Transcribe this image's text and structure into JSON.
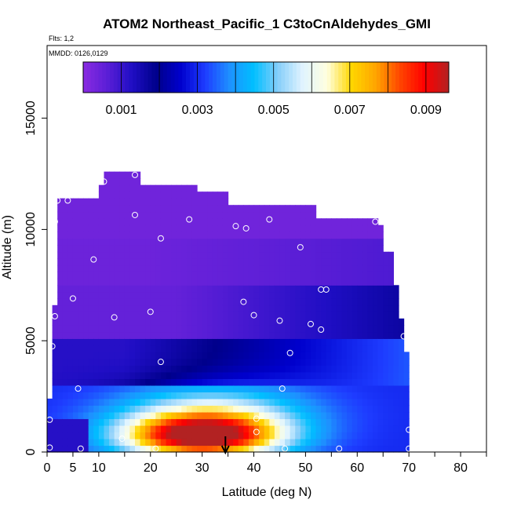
{
  "chart_data": {
    "type": "heatmap",
    "title": "ATOM2 Northeast_Pacific_1 C3toCnAldehydes_GMI",
    "flights_note": "Flts: 1,2",
    "mmdd_note": "MMDD: 0126,0129",
    "xlabel": "Latitude (deg N)",
    "ylabel": "Altitude (m)",
    "xlim": [
      0,
      85
    ],
    "ylim": [
      0,
      17500
    ],
    "x_ticks": [
      0,
      5,
      10,
      20,
      30,
      40,
      50,
      60,
      70,
      80
    ],
    "x_tick_labels": [
      "0",
      "5",
      "10",
      "20",
      "30",
      "40",
      "50",
      "60",
      "70",
      "80"
    ],
    "y_ticks": [
      0,
      5000,
      10000,
      15000
    ],
    "y_tick_labels": [
      "0",
      "5000",
      "10000",
      "15000"
    ],
    "colorbar": {
      "min": 0.0,
      "max": 0.0096,
      "tick_values": [
        0.001,
        0.003,
        0.005,
        0.007,
        0.009
      ],
      "tick_labels": [
        "0.001",
        "0.003",
        "0.005",
        "0.007",
        "0.009"
      ],
      "colors": [
        "#8a2be2",
        "#5a1ed6",
        "#1f0ec4",
        "#00008b",
        "#0000cd",
        "#1e3cff",
        "#1e90ff",
        "#00bfff",
        "#87cefa",
        "#e0f4ff",
        "#ffffe0",
        "#ffd700",
        "#ffa500",
        "#ff4500",
        "#ff0000",
        "#b22222"
      ]
    },
    "arrow_latitude": 34.5,
    "data_points": [
      {
        "lat": 17,
        "alt": 12450
      },
      {
        "lat": 11,
        "alt": 12150
      },
      {
        "lat": 2,
        "alt": 11300
      },
      {
        "lat": 4,
        "alt": 11300
      },
      {
        "lat": 1.5,
        "alt": 10350
      },
      {
        "lat": 17,
        "alt": 10650
      },
      {
        "lat": 27.5,
        "alt": 10450
      },
      {
        "lat": 22,
        "alt": 9600
      },
      {
        "lat": 36.5,
        "alt": 10150
      },
      {
        "lat": 38.5,
        "alt": 10050
      },
      {
        "lat": 43,
        "alt": 10450
      },
      {
        "lat": 63.5,
        "alt": 10350
      },
      {
        "lat": 9,
        "alt": 8650
      },
      {
        "lat": 49,
        "alt": 9200
      },
      {
        "lat": 5,
        "alt": 6900
      },
      {
        "lat": 38,
        "alt": 6750
      },
      {
        "lat": 53,
        "alt": 7300
      },
      {
        "lat": 54,
        "alt": 7300
      },
      {
        "lat": 1.5,
        "alt": 6100
      },
      {
        "lat": 13,
        "alt": 6050
      },
      {
        "lat": 20,
        "alt": 6300
      },
      {
        "lat": 40,
        "alt": 6150
      },
      {
        "lat": 45,
        "alt": 5900
      },
      {
        "lat": 51,
        "alt": 5750
      },
      {
        "lat": 53,
        "alt": 5500
      },
      {
        "lat": 69,
        "alt": 5200
      },
      {
        "lat": 1,
        "alt": 4750
      },
      {
        "lat": 22,
        "alt": 4050
      },
      {
        "lat": 47,
        "alt": 4450
      },
      {
        "lat": 6,
        "alt": 2850
      },
      {
        "lat": 45.5,
        "alt": 2850
      },
      {
        "lat": 0.5,
        "alt": 1450
      },
      {
        "lat": 40.5,
        "alt": 1500
      },
      {
        "lat": 40.5,
        "alt": 900
      },
      {
        "lat": 70,
        "alt": 1000
      },
      {
        "lat": 14.5,
        "alt": 600
      },
      {
        "lat": 0.5,
        "alt": 200
      },
      {
        "lat": 6.5,
        "alt": 150
      },
      {
        "lat": 21,
        "alt": 150
      },
      {
        "lat": 46,
        "alt": 150
      },
      {
        "lat": 56.5,
        "alt": 150
      },
      {
        "lat": 70,
        "alt": 150
      }
    ]
  }
}
